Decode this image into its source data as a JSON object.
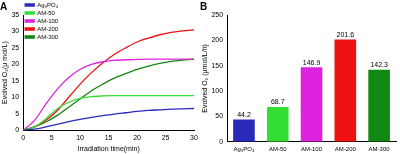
{
  "chart_data": [
    {
      "type": "line",
      "title": "A",
      "xlabel": "Irradiation time(min)",
      "ylabel": "Evolved O₂(μ mol/L)",
      "x": [
        0,
        2,
        4,
        6,
        8,
        10,
        12,
        14,
        16,
        18,
        20,
        22,
        24,
        26,
        28,
        30
      ],
      "series": [
        {
          "name": "Ag₃PO₄",
          "color": "#2a2ab8",
          "values": [
            0,
            0.3,
            1,
            1.8,
            2.6,
            3.3,
            3.9,
            4.4,
            4.9,
            5.3,
            5.7,
            6,
            6.2,
            6.4,
            6.5,
            6.6
          ]
        },
        {
          "name": "AM-50",
          "color": "#33dd33",
          "values": [
            0,
            1,
            3.5,
            6.5,
            8.5,
            9.7,
            10.2,
            10.4,
            10.5,
            10.5,
            10.5,
            10.5,
            10.5,
            10.5,
            10.5,
            10.5
          ]
        },
        {
          "name": "AM-100",
          "color": "#dd22dd",
          "values": [
            0,
            3,
            8,
            12.5,
            16,
            18.5,
            20,
            20.8,
            21.2,
            21.4,
            21.5,
            21.6,
            21.6,
            21.6,
            21.6,
            21.6
          ]
        },
        {
          "name": "AM-200",
          "color": "#ee1111",
          "values": [
            0,
            1,
            3,
            6,
            10,
            14,
            17.5,
            20.5,
            23,
            25,
            26.8,
            28,
            29,
            29.7,
            30.2,
            30.5
          ]
        },
        {
          "name": "AM-300",
          "color": "#118811",
          "values": [
            0,
            1,
            2.5,
            4.5,
            7,
            9.5,
            12,
            14,
            15.8,
            17.2,
            18.5,
            19.5,
            20.3,
            20.9,
            21.3,
            21.6
          ]
        }
      ],
      "xlim": [
        0,
        30
      ],
      "xticks": [
        0,
        5,
        10,
        15,
        20,
        25,
        30
      ],
      "ylim": [
        0,
        35
      ],
      "yticks": [
        0,
        5,
        10,
        15,
        20,
        25,
        30,
        35
      ],
      "legend": "upper left"
    },
    {
      "type": "bar",
      "title": "B",
      "ylabel": "Evolved O₂ (μmol/L/h)",
      "categories": [
        "Ag₃PO₄",
        "AM-50",
        "AM-100",
        "AM-200",
        "AM-300"
      ],
      "values": [
        44.2,
        68.7,
        146.9,
        201.6,
        142.3
      ],
      "colors": [
        "#2a2ab8",
        "#33dd33",
        "#dd22dd",
        "#ee1111",
        "#118811"
      ],
      "ylim": [
        0,
        250
      ],
      "yticks": [
        0,
        50,
        100,
        150,
        200,
        250
      ],
      "data_labels": true
    }
  ]
}
